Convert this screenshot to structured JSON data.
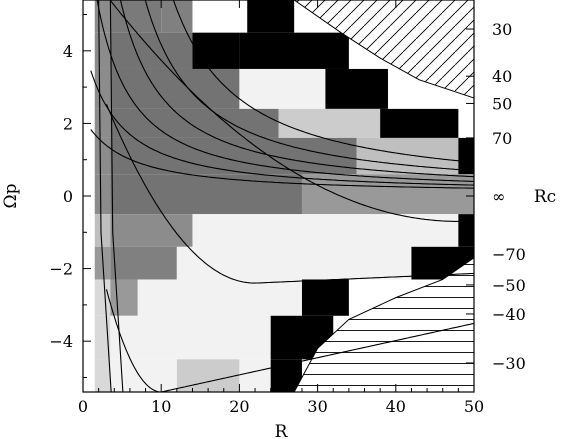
{
  "chart_data": {
    "type": "heatmap",
    "xlabel": "R",
    "ylabel": "Ωp",
    "right_label": "Rc",
    "xlim": [
      0,
      50
    ],
    "ylim": [
      -5.4,
      5.4
    ],
    "x_ticks": [
      0,
      10,
      20,
      30,
      40,
      50
    ],
    "y_ticks": [
      -4,
      -2,
      0,
      2,
      4
    ],
    "right_ticks": [
      {
        "label": "30",
        "omega": 4.6
      },
      {
        "label": "40",
        "omega": 3.3
      },
      {
        "label": "50",
        "omega": 2.55
      },
      {
        "label": "70",
        "omega": 1.6
      },
      {
        "label": "∞",
        "omega": 0
      },
      {
        "label": "−70",
        "omega": -1.6
      },
      {
        "label": "−50",
        "omega": -2.45
      },
      {
        "label": "−40",
        "omega": -3.25
      },
      {
        "label": "−30",
        "omega": -4.6
      }
    ],
    "contours_upper_asymptote": [
      0.75,
      1.1,
      1.5,
      2.0,
      2.6,
      3.4
    ],
    "contours_upper_shift": [
      8.5,
      7.0,
      5.5,
      4.0,
      2.5,
      1.0
    ],
    "contours_lower": [
      {
        "min_r": 48,
        "min_omega": -0.7
      },
      {
        "min_r": 22,
        "min_omega": -2.4
      },
      {
        "min_r": 10,
        "min_omega": -5.4
      }
    ],
    "vertical_curves_r": [
      2.0,
      3.5
    ],
    "hatch_upper_boundary": [
      [
        27,
        5.4
      ],
      [
        33,
        4.5
      ],
      [
        38,
        3.8
      ],
      [
        43,
        3.2
      ],
      [
        50,
        2.7
      ]
    ],
    "hatch_lower_boundary": [
      [
        50,
        -1.7
      ],
      [
        46,
        -2.3
      ],
      [
        40,
        -2.8
      ],
      [
        34,
        -3.4
      ],
      [
        30,
        -4.2
      ],
      [
        27,
        -5.4
      ]
    ],
    "bands": [
      {
        "y0": 4.5,
        "y1": 5.4,
        "cells": [
          [
            1.5,
            3.5,
            0.55
          ],
          [
            3.5,
            10,
            0.48
          ],
          [
            10,
            14,
            0.5
          ],
          [
            14,
            21,
            1.0
          ],
          [
            21,
            27,
            0.0
          ]
        ]
      },
      {
        "y0": 3.5,
        "y1": 4.5,
        "cells": [
          [
            1.5,
            3.5,
            0.55
          ],
          [
            3.5,
            14,
            0.45
          ],
          [
            14,
            20,
            0.0
          ],
          [
            20,
            34,
            0.0
          ]
        ]
      },
      {
        "y0": 2.4,
        "y1": 3.5,
        "cells": [
          [
            1.5,
            3.5,
            0.55
          ],
          [
            3.5,
            20,
            0.45
          ],
          [
            20,
            31,
            0.95
          ],
          [
            31,
            39,
            0.0
          ]
        ]
      },
      {
        "y0": 1.6,
        "y1": 2.4,
        "cells": [
          [
            1.5,
            3.5,
            0.55
          ],
          [
            3.5,
            25,
            0.45
          ],
          [
            25,
            38,
            0.8
          ],
          [
            38,
            48,
            0.0
          ]
        ]
      },
      {
        "y0": 0.6,
        "y1": 1.6,
        "cells": [
          [
            1.5,
            3.5,
            0.55
          ],
          [
            3.5,
            35,
            0.45
          ],
          [
            35,
            48,
            0.75
          ],
          [
            48,
            50,
            0.0
          ]
        ]
      },
      {
        "y0": -0.5,
        "y1": 0.6,
        "cells": [
          [
            1.5,
            3.5,
            0.55
          ],
          [
            3.5,
            28,
            0.45
          ],
          [
            28,
            50,
            0.6
          ]
        ]
      },
      {
        "y0": -1.4,
        "y1": -0.5,
        "cells": [
          [
            1.5,
            3.5,
            0.75
          ],
          [
            3.5,
            14,
            0.55
          ],
          [
            14,
            48,
            0.95
          ],
          [
            48,
            50,
            0.0
          ]
        ]
      },
      {
        "y0": -2.3,
        "y1": -1.4,
        "cells": [
          [
            1.5,
            3.5,
            0.6
          ],
          [
            3.5,
            12,
            0.5
          ],
          [
            12,
            42,
            0.95
          ],
          [
            42,
            50,
            0.0
          ]
        ]
      },
      {
        "y0": -3.3,
        "y1": -2.3,
        "cells": [
          [
            1.5,
            3.5,
            0.85
          ],
          [
            3.5,
            7,
            0.6
          ],
          [
            7,
            28,
            0.95
          ],
          [
            28,
            34,
            0.0
          ]
        ]
      },
      {
        "y0": -4.5,
        "y1": -3.3,
        "cells": [
          [
            1.5,
            3.5,
            0.85
          ],
          [
            3.5,
            14,
            0.95
          ],
          [
            14,
            24,
            0.95
          ],
          [
            24,
            32,
            0.0
          ]
        ]
      },
      {
        "y0": -5.4,
        "y1": -4.5,
        "cells": [
          [
            1.5,
            3.5,
            0.85
          ],
          [
            3.5,
            12,
            0.95
          ],
          [
            12,
            20,
            0.8
          ],
          [
            20,
            24,
            0.95
          ],
          [
            24,
            28,
            0.0
          ]
        ]
      }
    ]
  }
}
